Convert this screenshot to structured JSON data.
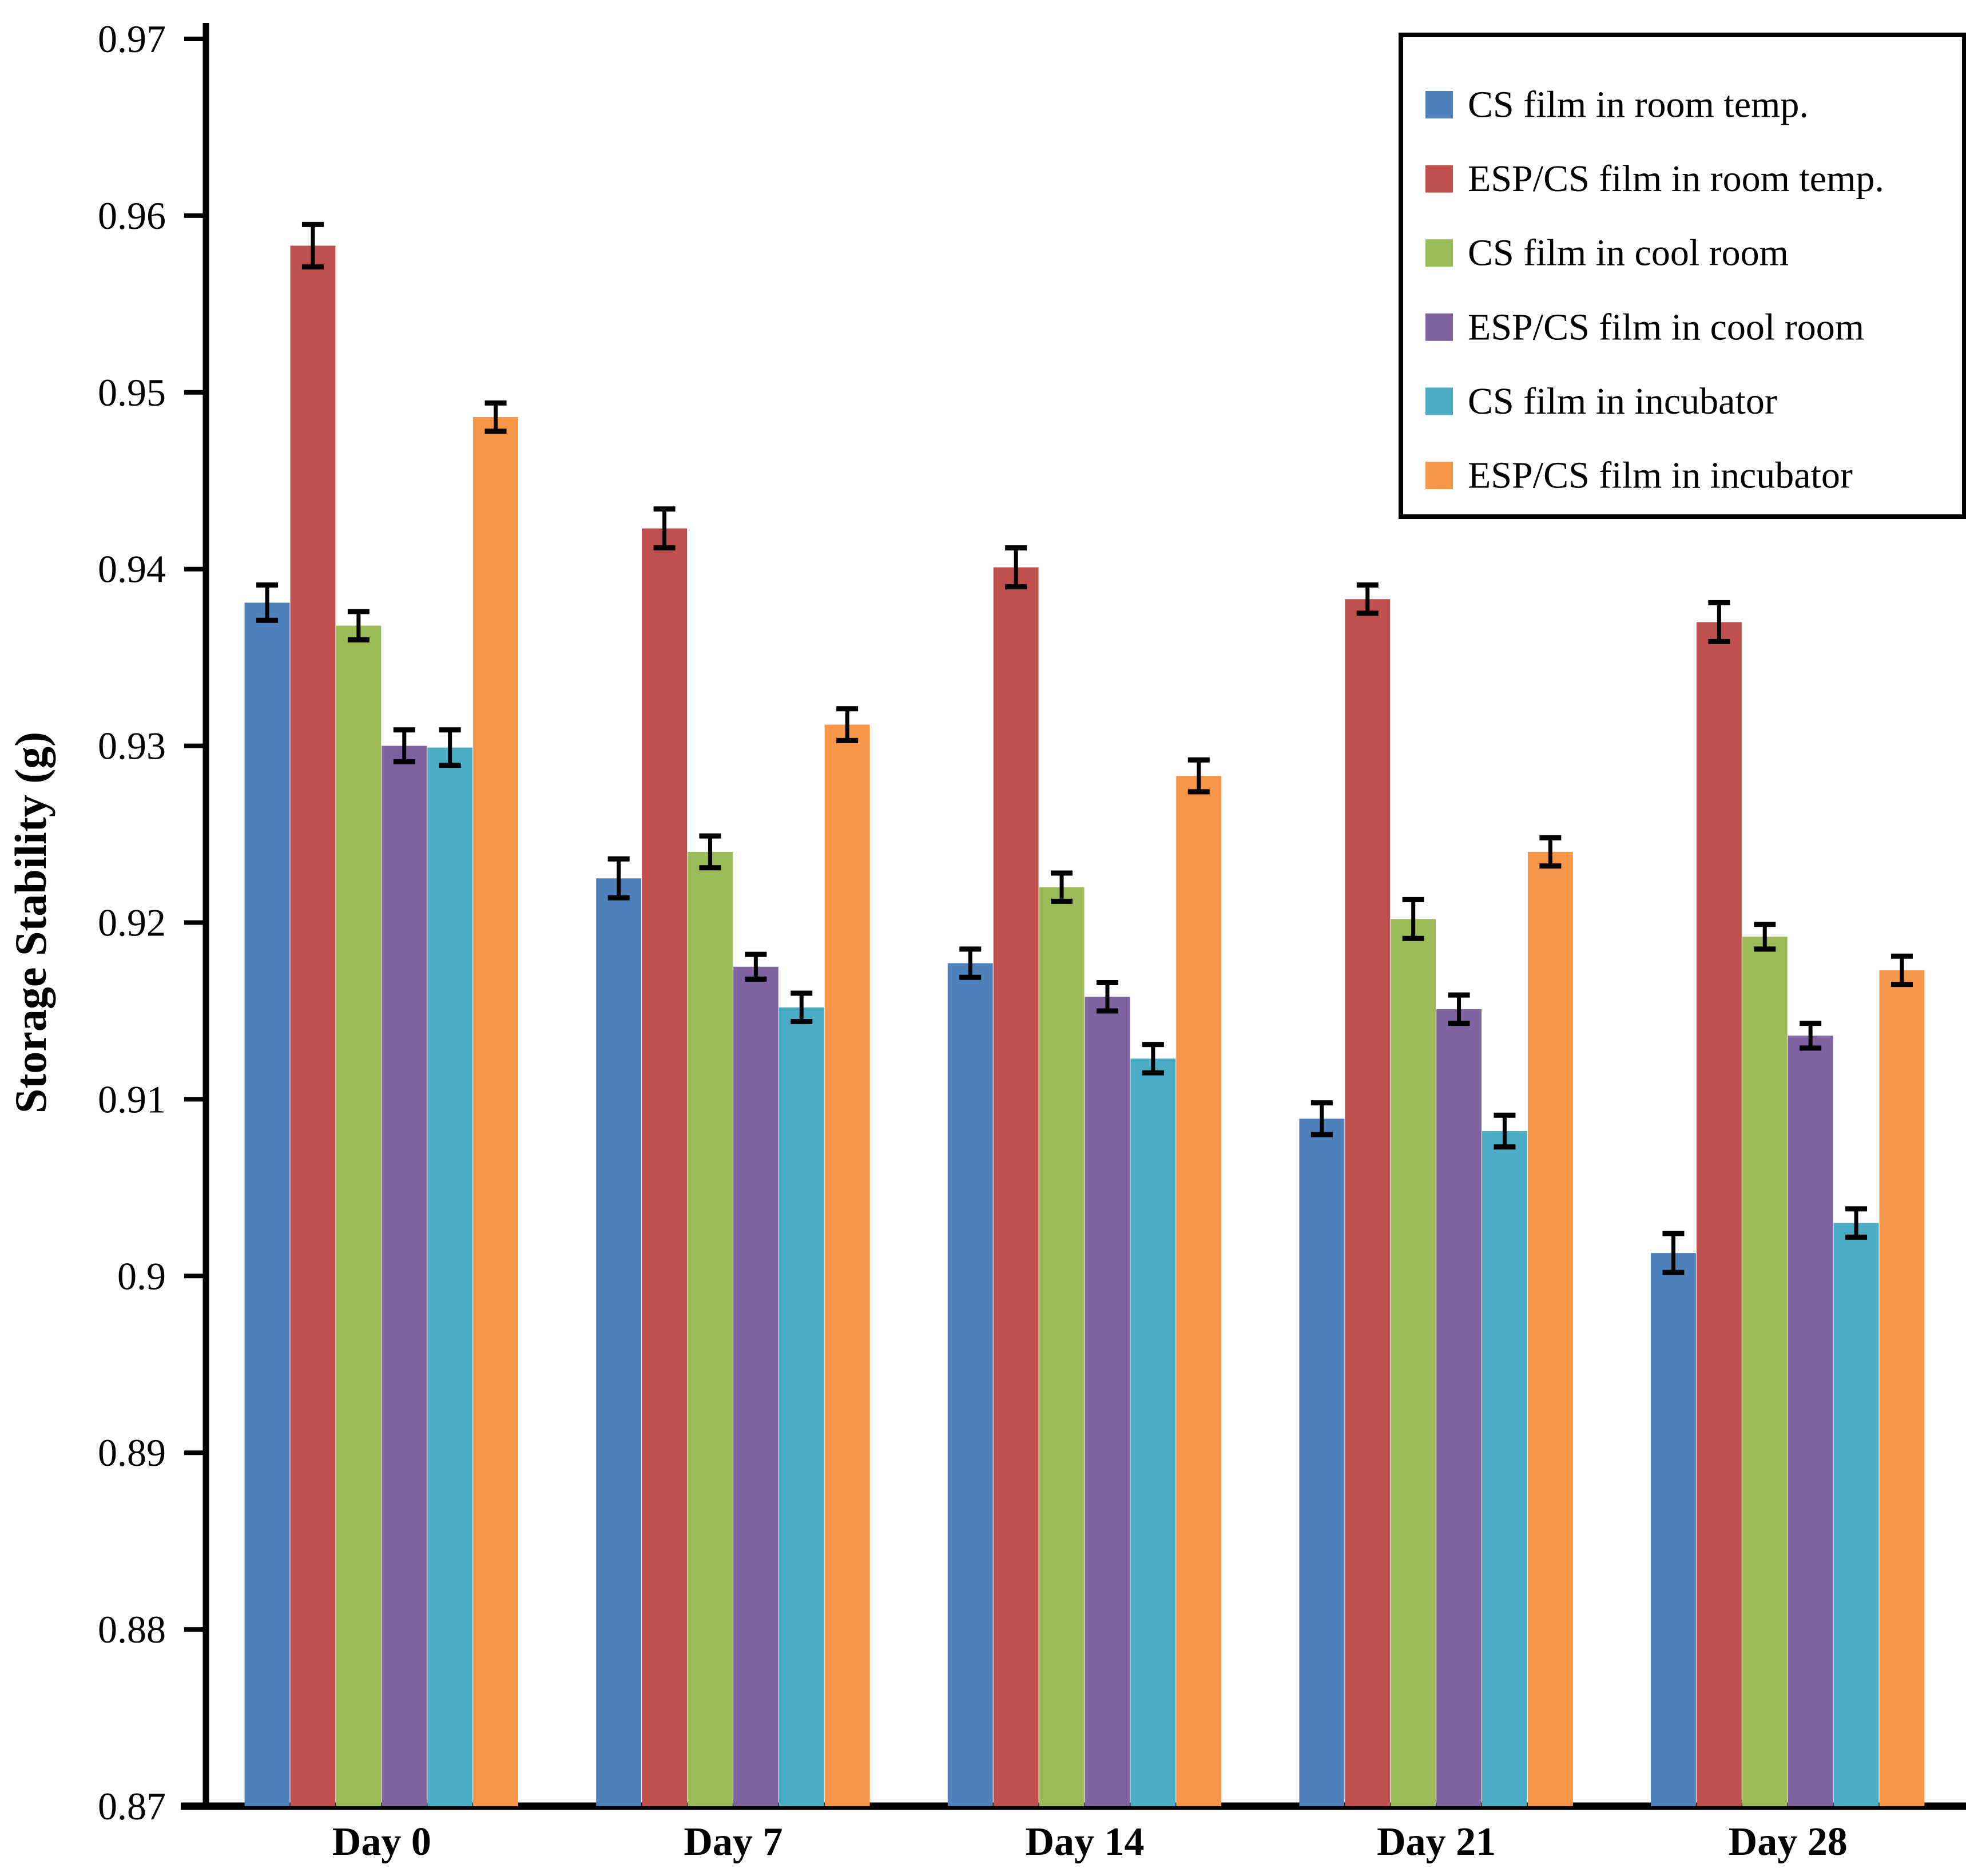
{
  "figure": {
    "background": "#ffffff",
    "axis_color": "#000000"
  },
  "y_axis": {
    "label": "Storage Stability (g)",
    "tick_labels": [
      "0.97",
      "0.96",
      "0.95",
      "0.94",
      "0.93",
      "0.92",
      "0.91",
      "0.9",
      "0.89",
      "0.88",
      "0.87"
    ]
  },
  "x_axis": {
    "category_labels": [
      "Day 0",
      "Day 7",
      "Day 14",
      "Day 21",
      "Day 28"
    ]
  },
  "legend": {
    "items": [
      {
        "label": "CS film in room temp.",
        "color": "#4F81BD"
      },
      {
        "label": "ESP/CS film in room temp.",
        "color": "#C0504D"
      },
      {
        "label": "CS film in cool room",
        "color": "#9BBB59"
      },
      {
        "label": "ESP/CS film in cool room",
        "color": "#8064A2"
      },
      {
        "label": "CS film in incubator",
        "color": "#4BACC6"
      },
      {
        "label": "ESP/CS film in incubator",
        "color": "#F79646"
      }
    ]
  },
  "chart_data": {
    "type": "bar",
    "title": "",
    "xlabel": "",
    "ylabel": "Storage Stability (g)",
    "ylim": [
      0.87,
      0.97
    ],
    "ytick_step": 0.01,
    "grid": false,
    "legend_position": "top-right",
    "error_bars": true,
    "categories": [
      "Day 0",
      "Day 7",
      "Day 14",
      "Day 21",
      "Day 28"
    ],
    "series": [
      {
        "name": "CS film in room temp.",
        "color": "#4F81BD",
        "values": [
          0.9381,
          0.9225,
          0.9177,
          0.9089,
          0.9013
        ],
        "errors": [
          0.001,
          0.0011,
          0.0008,
          0.0009,
          0.0011
        ]
      },
      {
        "name": "ESP/CS film in room temp.",
        "color": "#C0504D",
        "values": [
          0.9583,
          0.9423,
          0.9401,
          0.9383,
          0.937
        ],
        "errors": [
          0.0012,
          0.0011,
          0.0011,
          0.0008,
          0.0011
        ]
      },
      {
        "name": "CS film in cool room",
        "color": "#9BBB59",
        "values": [
          0.9368,
          0.924,
          0.922,
          0.9202,
          0.9192
        ],
        "errors": [
          0.0008,
          0.0009,
          0.0008,
          0.0011,
          0.0007
        ]
      },
      {
        "name": "ESP/CS film in cool room",
        "color": "#8064A2",
        "values": [
          0.93,
          0.9175,
          0.9158,
          0.9151,
          0.9136
        ],
        "errors": [
          0.0009,
          0.0007,
          0.0008,
          0.0008,
          0.0007
        ]
      },
      {
        "name": "CS film in incubator",
        "color": "#4BACC6",
        "values": [
          0.9299,
          0.9152,
          0.9123,
          0.9082,
          0.903
        ],
        "errors": [
          0.001,
          0.0008,
          0.0008,
          0.0009,
          0.0008
        ]
      },
      {
        "name": "ESP/CS film in incubator",
        "color": "#F79646",
        "values": [
          0.9486,
          0.9312,
          0.9283,
          0.924,
          0.9173
        ],
        "errors": [
          0.0008,
          0.0009,
          0.0009,
          0.0008,
          0.0008
        ]
      }
    ]
  }
}
